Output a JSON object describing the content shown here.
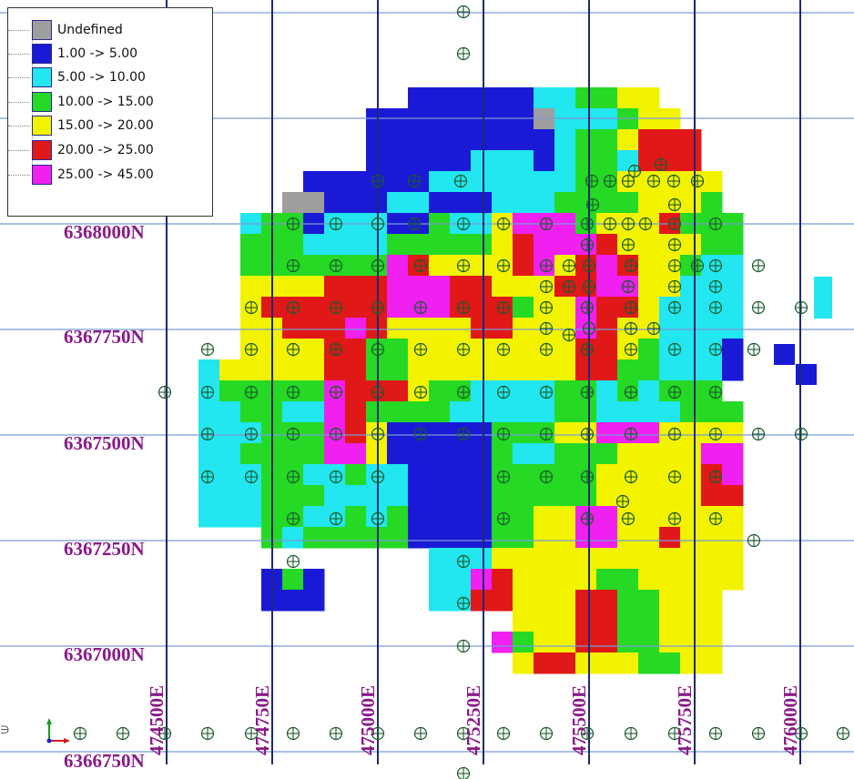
{
  "legend": {
    "items": [
      {
        "label": "Undefined",
        "color": "#9e9e9e"
      },
      {
        "label": "1.00 -> 5.00",
        "color": "#1a1ad6"
      },
      {
        "label": "5.00 -> 10.00",
        "color": "#22e6f0"
      },
      {
        "label": "10.00 -> 15.00",
        "color": "#25d925"
      },
      {
        "label": "15.00 -> 20.00",
        "color": "#f3f300"
      },
      {
        "label": "20.00 -> 25.00",
        "color": "#e01818"
      },
      {
        "label": "25.00 -> 45.00",
        "color": "#f020f0"
      }
    ]
  },
  "northings": [
    "6368000N",
    "6367750N",
    "6367500N",
    "6367250N",
    "6367000N",
    "6366750N"
  ],
  "eastings": [
    "474500E",
    "474750E",
    "475000E",
    "475250E",
    "475500E",
    "475750E",
    "476000E"
  ],
  "colors": {
    "grid_major": "#1c2a6e",
    "grid_minor": "#7a9ad6",
    "label": "#8a1a8a",
    "drillhole": "#1a5a2a"
  }
}
